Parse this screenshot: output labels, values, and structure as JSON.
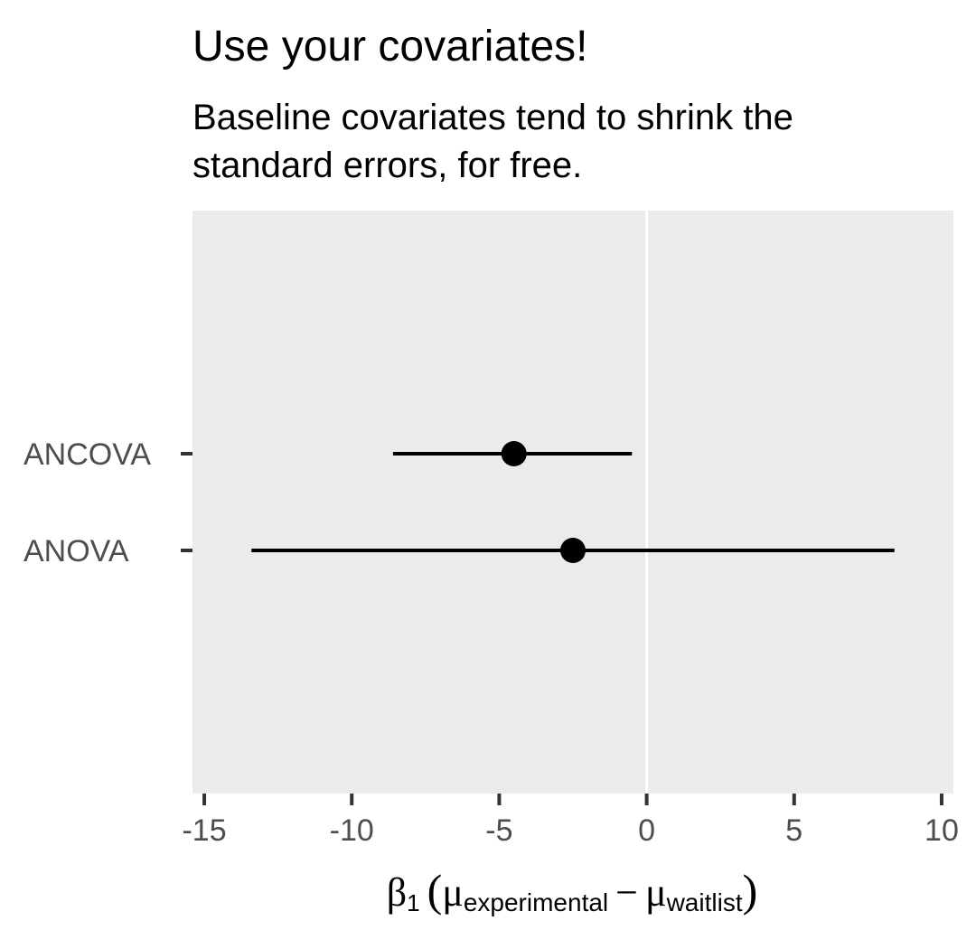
{
  "chart_data": {
    "type": "scatter",
    "title": "Use your covariates!",
    "subtitle_lines": [
      "Baseline covariates tend to shrink the",
      "standard errors, for free."
    ],
    "xlabel": {
      "beta": "β",
      "beta_sub": "1",
      "open_paren": "(",
      "mu1": "μ",
      "mu1_sub": "experimental",
      "minus": "−",
      "mu2": "μ",
      "mu2_sub": "waitlist",
      "close_paren": ")"
    },
    "xlim": [
      -15.4,
      10.4
    ],
    "xticks": [
      {
        "value": -15,
        "label": "-15"
      },
      {
        "value": -10,
        "label": "-10"
      },
      {
        "value": -5,
        "label": "-5"
      },
      {
        "value": 0,
        "label": "0"
      },
      {
        "value": 5,
        "label": "5"
      },
      {
        "value": 10,
        "label": "10"
      }
    ],
    "categories": [
      "ANCOVA",
      "ANOVA"
    ],
    "points": [
      {
        "category": "ANCOVA",
        "estimate": -4.5,
        "lower": -8.6,
        "upper": -0.5
      },
      {
        "category": "ANOVA",
        "estimate": -2.5,
        "lower": -13.4,
        "upper": 8.4
      }
    ],
    "reference_line_x": 0,
    "grid": false,
    "colors": {
      "panel_background": "#ebebeb",
      "reference_line": "#ffffff",
      "marks": "#000000",
      "tick_text": "#4d4d4d",
      "tick_marks": "#333333"
    }
  }
}
